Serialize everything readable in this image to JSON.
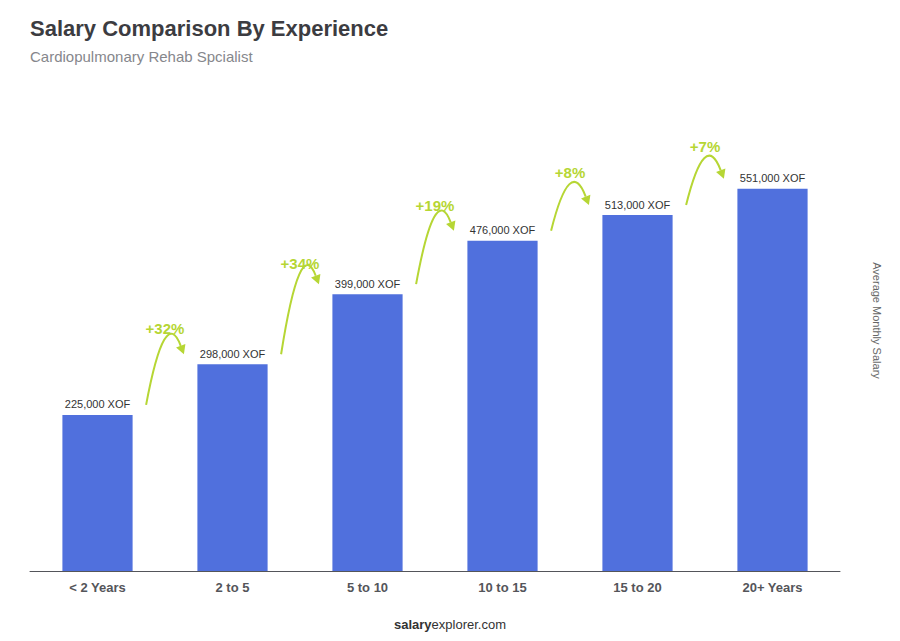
{
  "chart_data": {
    "type": "bar",
    "title": "Salary Comparison By Experience",
    "subtitle": "Cardiopulmonary Rehab Spcialist",
    "ylabel": "Average Monthly Salary",
    "categories": [
      "< 2 Years",
      "2 to 5",
      "5 to 10",
      "10 to 15",
      "15 to 20",
      "20+ Years"
    ],
    "values": [
      225000,
      298000,
      399000,
      476000,
      513000,
      551000
    ],
    "value_labels": [
      "225,000 XOF",
      "298,000 XOF",
      "399,000 XOF",
      "476,000 XOF",
      "513,000 XOF",
      "551,000 XOF"
    ],
    "data_labels": true,
    "annotations": [
      "+32%",
      "+34%",
      "+19%",
      "+8%",
      "+7%"
    ],
    "footer": [
      "salary",
      "explorer.com"
    ],
    "ylim": [
      0,
      650000
    ],
    "grid": false,
    "tick_labels": "x"
  }
}
